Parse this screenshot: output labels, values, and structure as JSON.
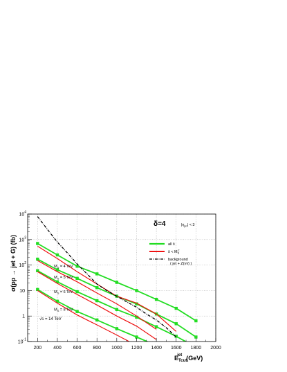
{
  "chart_data": {
    "type": "line",
    "xlabel_main": "E",
    "xlabel_sub": "Tcut",
    "xlabel_sup": "jet",
    "xlabel_unit": "(GeV)",
    "ylabel": "σ(pp → jet + G)  (fb)",
    "yscale": "log",
    "xlim": [
      100,
      2000
    ],
    "ylim": [
      0.1,
      10000
    ],
    "x_ticks": [
      200,
      400,
      600,
      800,
      1000,
      1200,
      1400,
      1600,
      1800,
      2000
    ],
    "y_ticks": [
      {
        "value": 0.1,
        "base": "10",
        "exp": "-1"
      },
      {
        "value": 1,
        "base": "1",
        "exp": ""
      },
      {
        "value": 10,
        "base": "10",
        "exp": ""
      },
      {
        "value": 100,
        "base": "10",
        "exp": "2"
      },
      {
        "value": 1000,
        "base": "10",
        "exp": "3"
      },
      {
        "value": 10000,
        "base": "10",
        "exp": "4"
      }
    ],
    "grid": true,
    "legend": {
      "delta": "δ=4",
      "eta_cut": "|η",
      "eta_cut_sub": "jet",
      "eta_cut_rest": "| < 3",
      "entries": [
        {
          "label": "all ŝ",
          "color": "#22dd22"
        },
        {
          "label": "ŝ < M",
          "label_sub": "S",
          "label_sup": "2",
          "color": "#ee1111"
        },
        {
          "label": "background",
          "label2": "( jet + Z(νν̄) )",
          "color": "#000000"
        }
      ]
    },
    "annotations": {
      "sqrt_s": "√s = 14 TeV",
      "ms_labels": [
        {
          "text": "M",
          "sub": "S",
          "rest": " = 4 TeV",
          "x": 450,
          "y": 80
        },
        {
          "text": "M",
          "sub": "S",
          "rest": " = 5 TeV",
          "x": 450,
          "y": 30
        },
        {
          "text": "M",
          "sub": "S",
          "rest": " = 6 TeV",
          "x": 450,
          "y": 8
        },
        {
          "text": "M",
          "sub": "S",
          "rest": " = 8 TeV",
          "x": 450,
          "y": 1.6
        }
      ]
    },
    "series_all": [
      {
        "ms": "4 TeV",
        "x": [
          200,
          400,
          600,
          800,
          1000,
          1200,
          1400,
          1600,
          1800
        ],
        "y": [
          700,
          250,
          90,
          45,
          21,
          10,
          4.5,
          2,
          0.65
        ]
      },
      {
        "ms": "5 TeV",
        "x": [
          200,
          400,
          600,
          800,
          1000,
          1200,
          1400,
          1600,
          1800
        ],
        "y": [
          170,
          65,
          30,
          13,
          6,
          3,
          1.2,
          0.5,
          0.15
        ]
      },
      {
        "ms": "6 TeV",
        "x": [
          200,
          400,
          600,
          800,
          1000,
          1200,
          1400,
          1600,
          1800
        ],
        "y": [
          60,
          22,
          9,
          4,
          1.8,
          0.9,
          0.38,
          0.16,
          0.06
        ]
      },
      {
        "ms": "8 TeV",
        "x": [
          200,
          400,
          600,
          800,
          1000,
          1200,
          1400,
          1600
        ],
        "y": [
          11,
          3.8,
          1.5,
          0.7,
          0.32,
          0.15,
          0.07,
          0.03
        ]
      }
    ],
    "series_red": [
      {
        "ms": "4 TeV",
        "x": [
          200,
          400,
          600,
          800,
          1000,
          1200,
          1400,
          1600
        ],
        "y": [
          550,
          180,
          55,
          18,
          6,
          3.2,
          1.2,
          0.25
        ]
      },
      {
        "ms": "5 TeV",
        "x": [
          200,
          400,
          600,
          800,
          1000,
          1200,
          1400
        ],
        "y": [
          150,
          55,
          22,
          8,
          3,
          1,
          0.3
        ]
      },
      {
        "ms": "6 TeV",
        "x": [
          200,
          400,
          600,
          800,
          1000,
          1200,
          1400
        ],
        "y": [
          55,
          19,
          7,
          2.7,
          1,
          0.4,
          0.12
        ]
      },
      {
        "ms": "8 TeV",
        "x": [
          200,
          400,
          600,
          800,
          1000,
          1200
        ],
        "y": [
          10,
          3.2,
          1.1,
          0.45,
          0.18,
          0.07
        ]
      }
    ],
    "background": {
      "x": [
        200,
        300,
        400,
        500,
        600,
        700,
        800,
        900,
        1000,
        1100,
        1200,
        1300,
        1400,
        1500,
        1600
      ],
      "y": [
        8000,
        2500,
        800,
        300,
        110,
        45,
        18,
        10,
        6,
        3.6,
        2.2,
        1.2,
        0.7,
        0.35,
        0.15
      ]
    }
  }
}
